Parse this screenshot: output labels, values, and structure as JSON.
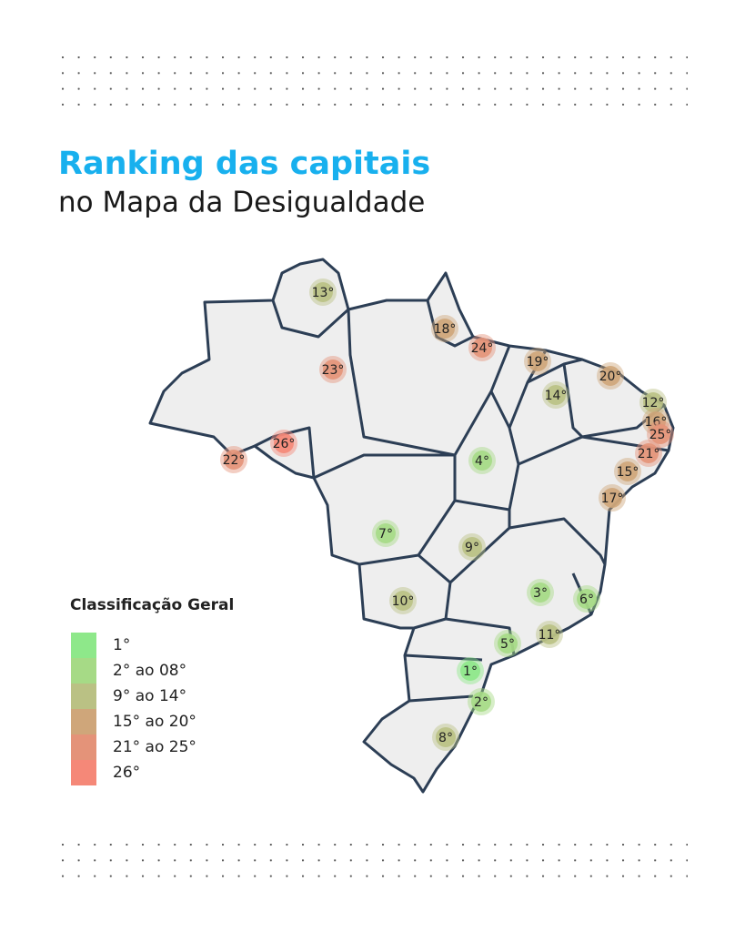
{
  "header": {
    "title": "Ranking das capitais",
    "subtitle": "no Mapa da Desigualdade"
  },
  "legend": {
    "title": "Classificação Geral",
    "items": [
      {
        "label": "1°",
        "color": "#8ee88a"
      },
      {
        "label": "2° ao 08°",
        "color": "#a6da86"
      },
      {
        "label": "9° ao 14°",
        "color": "#bac184"
      },
      {
        "label": "15° ao 20°",
        "color": "#cfa67a"
      },
      {
        "label": "21° ao 25°",
        "color": "#e49379"
      },
      {
        "label": "26°",
        "color": "#f58878"
      }
    ]
  },
  "markers": [
    {
      "label": "13°"
    },
    {
      "label": "18°"
    },
    {
      "label": "24°"
    },
    {
      "label": "23°"
    },
    {
      "label": "19°"
    },
    {
      "label": "20°"
    },
    {
      "label": "14°"
    },
    {
      "label": "12°"
    },
    {
      "label": "16°"
    },
    {
      "label": "25°"
    },
    {
      "label": "26°"
    },
    {
      "label": "22°"
    },
    {
      "label": "21°"
    },
    {
      "label": "4°"
    },
    {
      "label": "15°"
    },
    {
      "label": "17°"
    },
    {
      "label": "7°"
    },
    {
      "label": "9°"
    },
    {
      "label": "3°"
    },
    {
      "label": "6°"
    },
    {
      "label": "10°"
    },
    {
      "label": "11°"
    },
    {
      "label": "5°"
    },
    {
      "label": "1°"
    },
    {
      "label": "2°"
    },
    {
      "label": "8°"
    }
  ]
}
